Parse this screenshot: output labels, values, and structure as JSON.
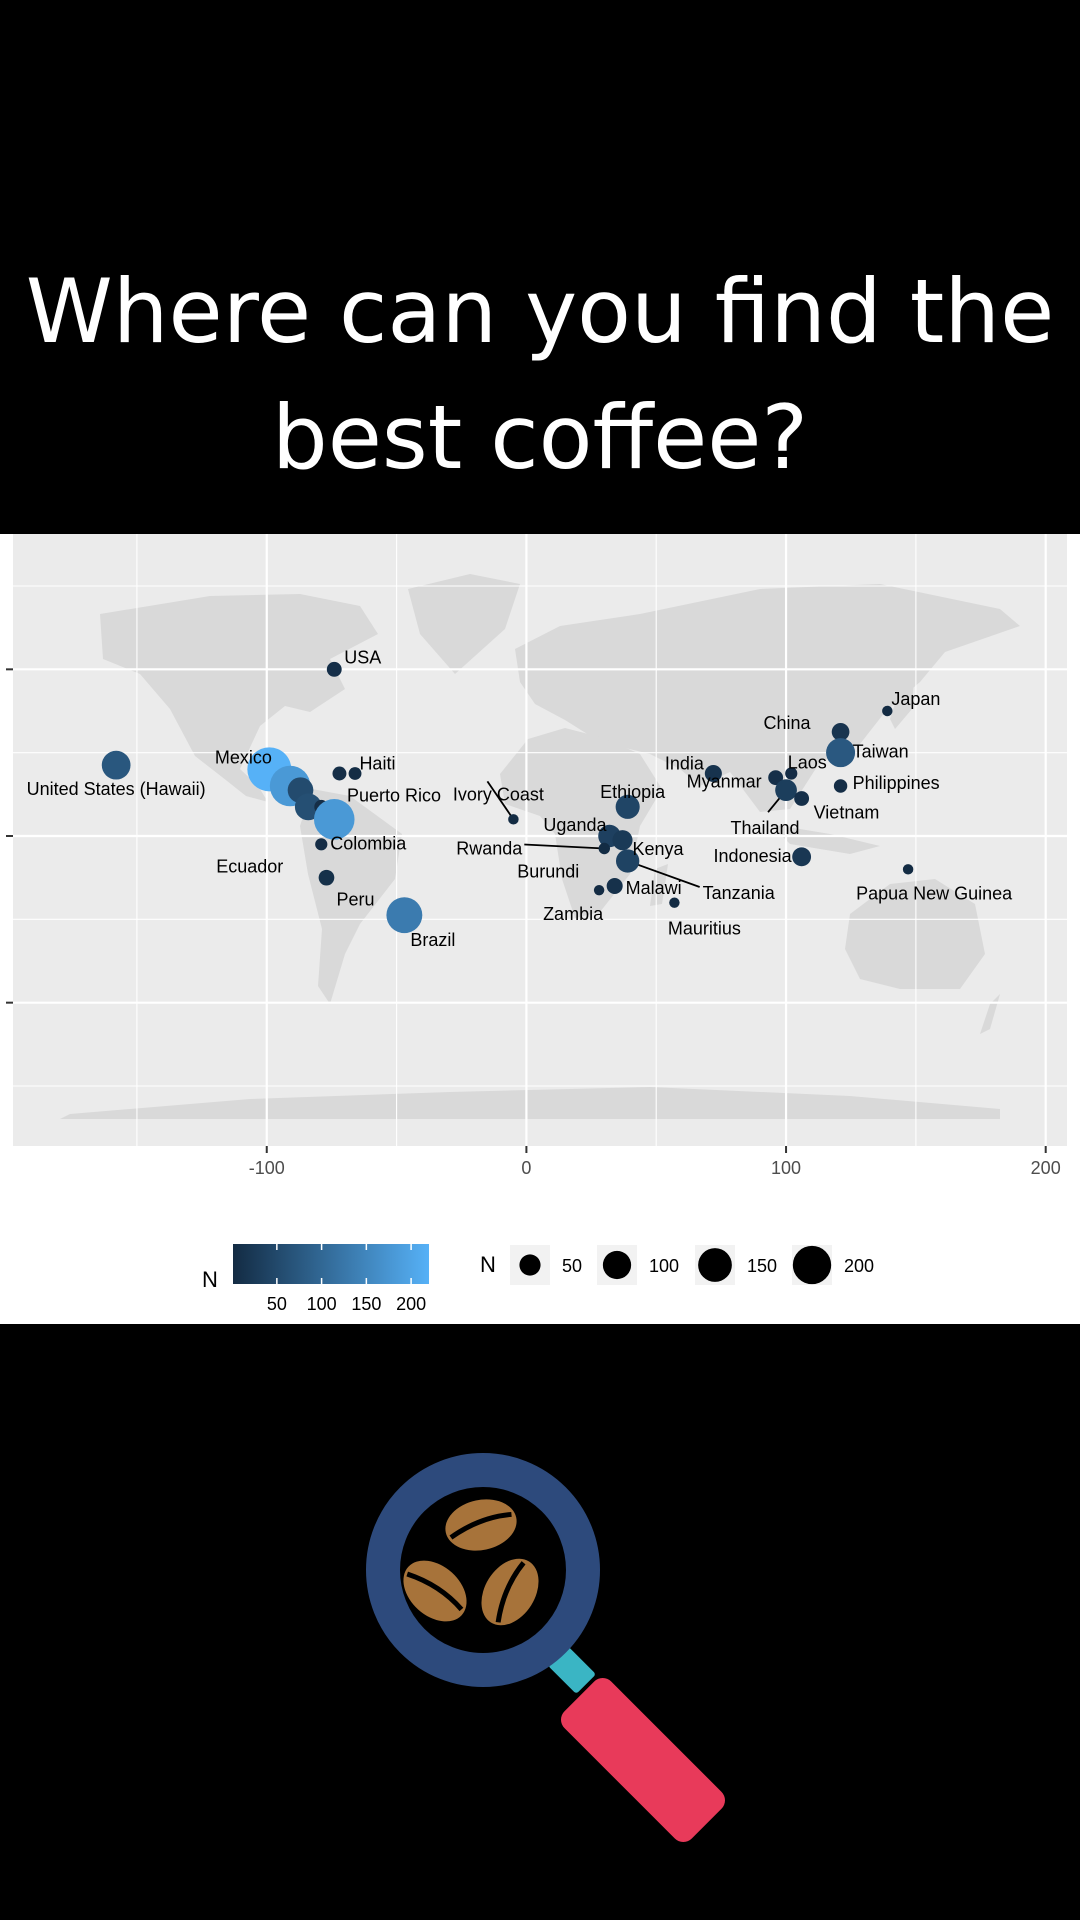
{
  "header": {
    "title_line1": "Where can you find the",
    "title_line2": "best coffee?"
  },
  "colors": {
    "background": "#000000",
    "title_text": "#ffffff",
    "panel_bg": "#ebebeb",
    "land": "#d9d9d9",
    "grid": "#ffffff",
    "color_low": "#132b43",
    "color_high": "#56b1f7",
    "magnifier_ring": "#2d4a7c",
    "magnifier_handle": "#e83a5a",
    "magnifier_neck": "#3ab5c4",
    "bean": "#a7733a"
  },
  "chart_data": {
    "type": "scatter",
    "title": "",
    "subtitle": "",
    "xlabel": "",
    "ylabel": "",
    "xlim": [
      -198,
      208
    ],
    "ylim": [
      -60,
      85
    ],
    "x_ticks": [
      -100,
      0,
      100,
      200
    ],
    "x_tick_labels": [
      "-100",
      "0",
      "100",
      "200"
    ],
    "y_ticks": [
      -40,
      0,
      40
    ],
    "grid": true,
    "background_map": "world",
    "legend_position": "bottom",
    "color_legend": {
      "title": "N",
      "min": 1,
      "max": 220,
      "breaks": [
        "50",
        "100",
        "150",
        "200"
      ]
    },
    "size_legend": {
      "title": "N",
      "breaks": [
        50,
        100,
        150,
        200
      ],
      "labels": [
        "50",
        "100",
        "150",
        "200"
      ]
    },
    "points": [
      {
        "label": "USA",
        "x": -74,
        "y": 40,
        "n": 8
      },
      {
        "label": "United States (Hawaii)",
        "x": -158,
        "y": 17,
        "n": 73
      },
      {
        "label": "Mexico",
        "x": -99,
        "y": 16,
        "n": 220
      },
      {
        "label": "Haiti",
        "x": -72,
        "y": 15,
        "n": 6
      },
      {
        "label": "Puerto Rico",
        "x": -66,
        "y": 15,
        "n": 4
      },
      {
        "label": "",
        "x": -91,
        "y": 12,
        "n": 180
      },
      {
        "label": "",
        "x": -87,
        "y": 11,
        "n": 53
      },
      {
        "label": "",
        "x": -84,
        "y": 7,
        "n": 60
      },
      {
        "label": "",
        "x": -79,
        "y": 7,
        "n": 6
      },
      {
        "label": "Colombia",
        "x": -74,
        "y": 4,
        "n": 180
      },
      {
        "label": "Ecuador",
        "x": -79,
        "y": -2,
        "n": 3
      },
      {
        "label": "Peru",
        "x": -77,
        "y": -10,
        "n": 10
      },
      {
        "label": "Brazil",
        "x": -47,
        "y": -19,
        "n": 132
      },
      {
        "label": "Ivory Coast",
        "x": -5,
        "y": 4,
        "n": 1
      },
      {
        "label": "Ethiopia",
        "x": 39,
        "y": 7,
        "n": 44
      },
      {
        "label": "Uganda",
        "x": 32,
        "y": 0,
        "n": 36
      },
      {
        "label": "Kenya",
        "x": 37,
        "y": -1,
        "n": 25
      },
      {
        "label": "Rwanda",
        "x": 30,
        "y": -3,
        "n": 1
      },
      {
        "label": "Tanzania",
        "x": 39,
        "y": -6,
        "n": 40
      },
      {
        "label": "Burundi",
        "x": 30,
        "y": -3,
        "n": 2
      },
      {
        "label": "Malawi",
        "x": 34,
        "y": -12,
        "n": 11
      },
      {
        "label": "Zambia",
        "x": 28,
        "y": -13,
        "n": 1
      },
      {
        "label": "Mauritius",
        "x": 57,
        "y": -16,
        "n": 1
      },
      {
        "label": "India",
        "x": 72,
        "y": 15,
        "n": 14
      },
      {
        "label": "Myanmar",
        "x": 96,
        "y": 14,
        "n": 8
      },
      {
        "label": "Laos",
        "x": 102,
        "y": 15,
        "n": 3
      },
      {
        "label": "Thailand",
        "x": 100,
        "y": 11,
        "n": 32
      },
      {
        "label": "Vietnam",
        "x": 106,
        "y": 9,
        "n": 8
      },
      {
        "label": "China",
        "x": 121,
        "y": 25,
        "n": 16
      },
      {
        "label": "Taiwan",
        "x": 121,
        "y": 20,
        "n": 75
      },
      {
        "label": "Japan",
        "x": 139,
        "y": 30,
        "n": 1
      },
      {
        "label": "Philippines",
        "x": 121,
        "y": 12,
        "n": 5
      },
      {
        "label": "Indonesia",
        "x": 106,
        "y": -5,
        "n": 20
      },
      {
        "label": "Papua New Guinea",
        "x": 147,
        "y": -8,
        "n": 1
      }
    ]
  }
}
